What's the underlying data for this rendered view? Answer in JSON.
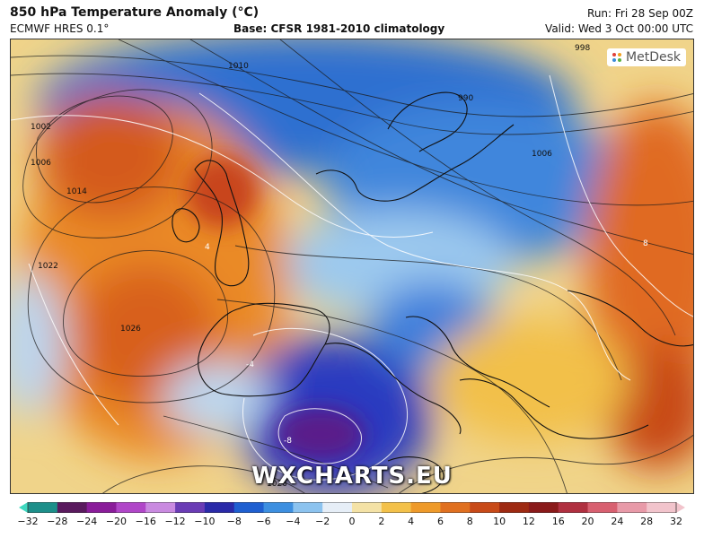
{
  "header": {
    "title": "850 hPa Temperature Anomaly (°C)",
    "model": "ECMWF HRES 0.1°",
    "base": "Base: CFSR 1981-2010 climatology",
    "run": "Run: Fri 28 Sep 00Z",
    "valid": "Valid: Wed 3 Oct 00:00 UTC"
  },
  "map": {
    "logo_text": "MetDesk",
    "watermark": "WXCHARTS.EU",
    "isobar_labels": [
      "1002",
      "1006",
      "1010",
      "1014",
      "1022",
      "1026",
      "998",
      "990",
      "1006",
      "1026"
    ],
    "anomaly_labels": [
      "-8",
      "-4",
      "4",
      "8"
    ]
  },
  "colorbar": {
    "ticks": [
      "−32",
      "−28",
      "−24",
      "−20",
      "−16",
      "−12",
      "−10",
      "−8",
      "−6",
      "−4",
      "−2",
      "0",
      "2",
      "4",
      "6",
      "8",
      "10",
      "12",
      "16",
      "20",
      "24",
      "28",
      "32"
    ],
    "colors": [
      "#3fd9c0",
      "#1d8f8a",
      "#5a1a5e",
      "#8a1c9a",
      "#b046c8",
      "#c98ae0",
      "#6a3cb5",
      "#2a2aa8",
      "#1f5fd0",
      "#3d8fe0",
      "#8cc3ef",
      "#e6eef7",
      "#f4e2a6",
      "#f3c14a",
      "#ee9a2a",
      "#e07020",
      "#c84a18",
      "#9e2a12",
      "#8a1a1a",
      "#b03040",
      "#d86070",
      "#e89aa8",
      "#f2c4cc"
    ]
  }
}
